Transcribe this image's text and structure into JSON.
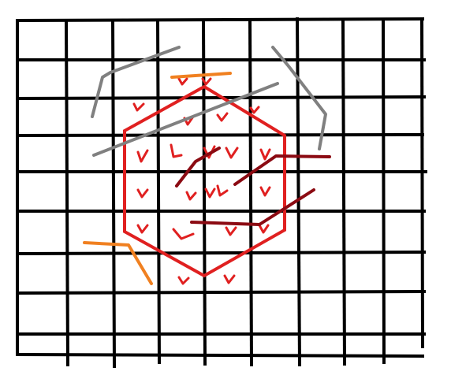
{
  "colors": {
    "background": "#ffffff",
    "grid": "#000000",
    "hexagon": "#e02020",
    "check": "#e02020",
    "gray": "#808080",
    "orange": "#f08020",
    "dark_red": "#8b0a12"
  },
  "grid": {
    "columns": 9,
    "rows": 9
  },
  "strokes": [
    {
      "name": "gray-stroke-top-left",
      "color": "gray"
    },
    {
      "name": "gray-stroke-center-diagonal",
      "color": "gray"
    },
    {
      "name": "gray-stroke-right",
      "color": "gray"
    },
    {
      "name": "orange-stroke-top",
      "color": "orange"
    },
    {
      "name": "orange-stroke-bottom-left",
      "color": "orange"
    },
    {
      "name": "dark-red-stroke-inner-left",
      "color": "dark_red"
    },
    {
      "name": "dark-red-stroke-inner-right",
      "color": "dark_red"
    },
    {
      "name": "dark-red-stroke-lower",
      "color": "dark_red"
    }
  ],
  "check_mark_count": 22
}
